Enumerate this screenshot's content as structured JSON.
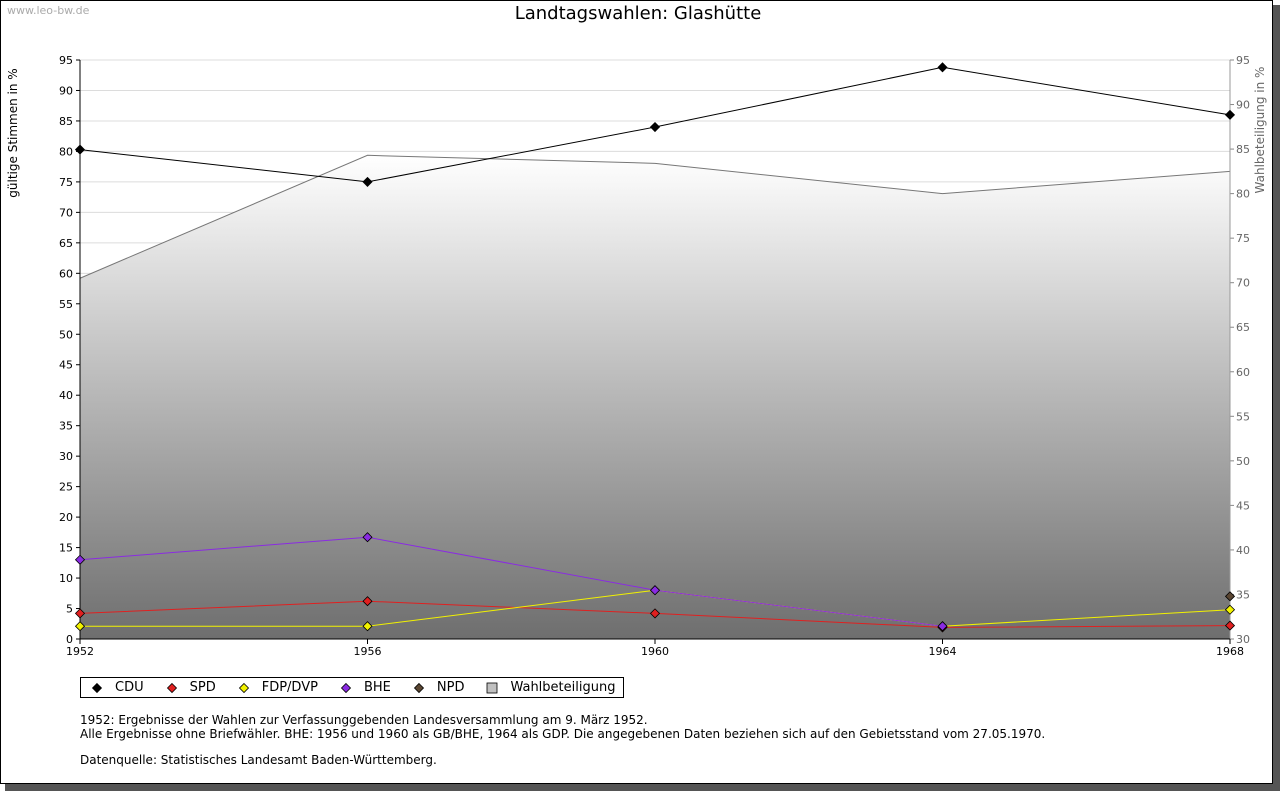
{
  "watermark": "www.leo-bw.de",
  "chart_data": {
    "type": "line",
    "title": "Landtagswahlen: Glashütte",
    "ylabel": "gültige Stimmen in %",
    "y2label": "Wahlbeteiligung in %",
    "ylim": [
      0,
      95
    ],
    "y2lim": [
      30,
      95
    ],
    "yticks": [
      0,
      5,
      10,
      15,
      20,
      25,
      30,
      35,
      40,
      45,
      50,
      55,
      60,
      65,
      70,
      75,
      80,
      85,
      90,
      95
    ],
    "y2ticks": [
      30,
      35,
      40,
      45,
      50,
      55,
      60,
      65,
      70,
      75,
      80,
      85,
      90,
      95
    ],
    "x": [
      1952,
      1956,
      1960,
      1964,
      1968
    ],
    "series": [
      {
        "name": "CDU",
        "color": "#000000",
        "values": [
          80.3,
          75.0,
          84.0,
          93.8,
          86.0
        ]
      },
      {
        "name": "SPD",
        "color": "#e02020",
        "values": [
          4.2,
          6.2,
          4.2,
          1.9,
          2.2
        ]
      },
      {
        "name": "FDP/DVP",
        "color": "#f2f200",
        "values": [
          2.1,
          2.1,
          8.0,
          2.1,
          4.8
        ]
      },
      {
        "name": "BHE",
        "color": "#8a2be2",
        "values": [
          13.0,
          16.7,
          8.0,
          2.1,
          null
        ]
      },
      {
        "name": "NPD",
        "color": "#5a4632",
        "values": [
          null,
          null,
          null,
          null,
          7.0
        ]
      }
    ],
    "turnout": {
      "name": "Wahlbeteiligung",
      "axis": "right",
      "values": [
        70.5,
        84.3,
        83.4,
        80.0,
        82.5
      ]
    }
  },
  "legend": [
    {
      "label": "CDU",
      "color": "#000000",
      "shape": "diamond"
    },
    {
      "label": "SPD",
      "color": "#e02020",
      "shape": "diamond"
    },
    {
      "label": "FDP/DVP",
      "color": "#f2f200",
      "shape": "diamond"
    },
    {
      "label": "BHE",
      "color": "#8a2be2",
      "shape": "diamond"
    },
    {
      "label": "NPD",
      "color": "#5a4632",
      "shape": "diamond"
    },
    {
      "label": "Wahlbeteiligung",
      "color": "#c0c0c0",
      "shape": "square"
    }
  ],
  "notes": [
    "1952: Ergebnisse der Wahlen zur Verfassunggebenden Landesversammlung am 9. März 1952.",
    "Alle Ergebnisse ohne Briefwähler. BHE: 1956 und 1960 als GB/BHE, 1964 als GDP. Die angegebenen Daten beziehen sich auf den Gebietsstand vom 27.05.1970."
  ],
  "source": "Datenquelle: Statistisches Landesamt Baden-Württemberg."
}
